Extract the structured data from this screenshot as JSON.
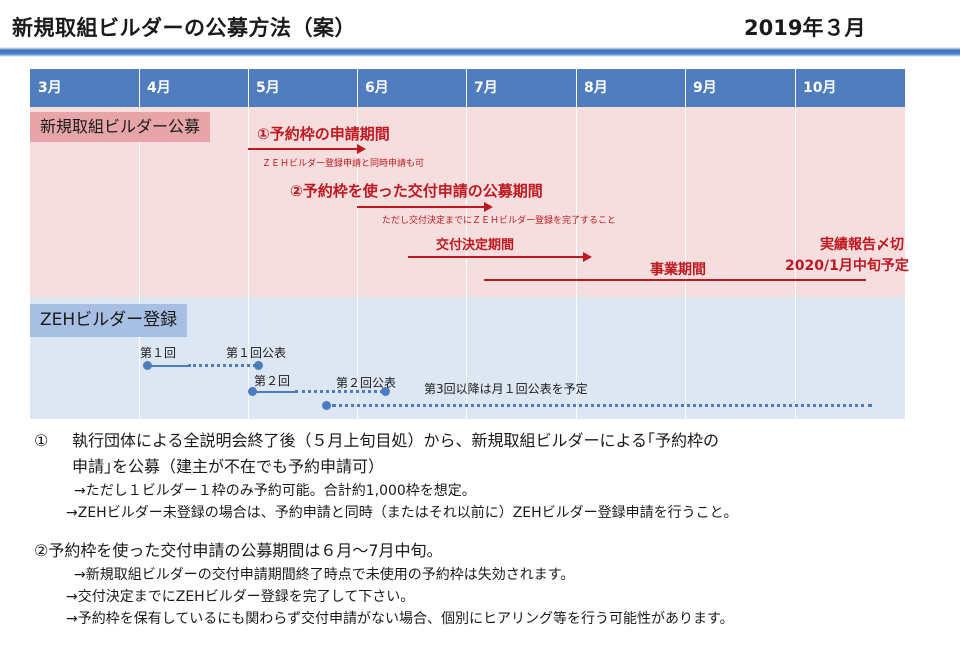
{
  "header": {
    "title": "新規取組ビルダーの公募方法（案）",
    "date": "2019年３月"
  },
  "months": [
    "3月",
    "4月",
    "5月",
    "6月",
    "7月",
    "8月",
    "9月",
    "10月"
  ],
  "sections": {
    "new_builder": "新規取組ビルダー公募",
    "zeh_register": "ZEHビルダー登録"
  },
  "timeline": {
    "reserve_period": "①予約枠の申請期間",
    "reserve_note": "ＺＥＨビルダー登録申請と同時申請も可",
    "grant_period": "②予約枠を使った交付申請の公募期間",
    "grant_note": "ただし交付決定までにＺＥＨビルダー登録を完了すること",
    "decision_period": "交付決定期間",
    "project_period": "事業期間",
    "report_deadline_1": "実績報告〆切",
    "report_deadline_2": "2020/1月中旬予定"
  },
  "zeh": {
    "round1": "第１回",
    "round1_pub": "第１回公表",
    "round2": "第２回",
    "round2_pub": "第２回公表",
    "after3": "第3回以降は月１回公表を予定"
  },
  "notes": {
    "item1_num": "①",
    "item1_line1": "執行団体による全説明会終了後（５月上旬目処）から、新規取組ビルダーによる｢予約枠の",
    "item1_line2": "申請｣を公募（建主が不在でも予約申請可）",
    "item1_sub1": "→ただし１ビルダー１枠のみ予約可能。合計約1,000枠を想定。",
    "item1_sub2": "→ZEHビルダー未登録の場合は、予約申請と同時（またはそれ以前に）ZEHビルダー登録申請を行うこと。",
    "item2_line": "②予約枠を使った交付申請の公募期間は６月～7月中旬。",
    "item2_sub1": "→新規取組ビルダーの交付申請期間終了時点で未使用の予約枠は失効されます。",
    "item2_sub2": "→交付決定までにZEHビルダー登録を完了して下さい。",
    "item2_sub3": "→予約枠を保有しているにも関わらず交付申請がない場合、個別にヒアリング等を行う可能性があります。"
  },
  "colors": {
    "accent_blue": "#4f7dbd",
    "pink_bg": "#f6dede",
    "blue_bg": "#dde6f3",
    "red": "#c01820"
  }
}
